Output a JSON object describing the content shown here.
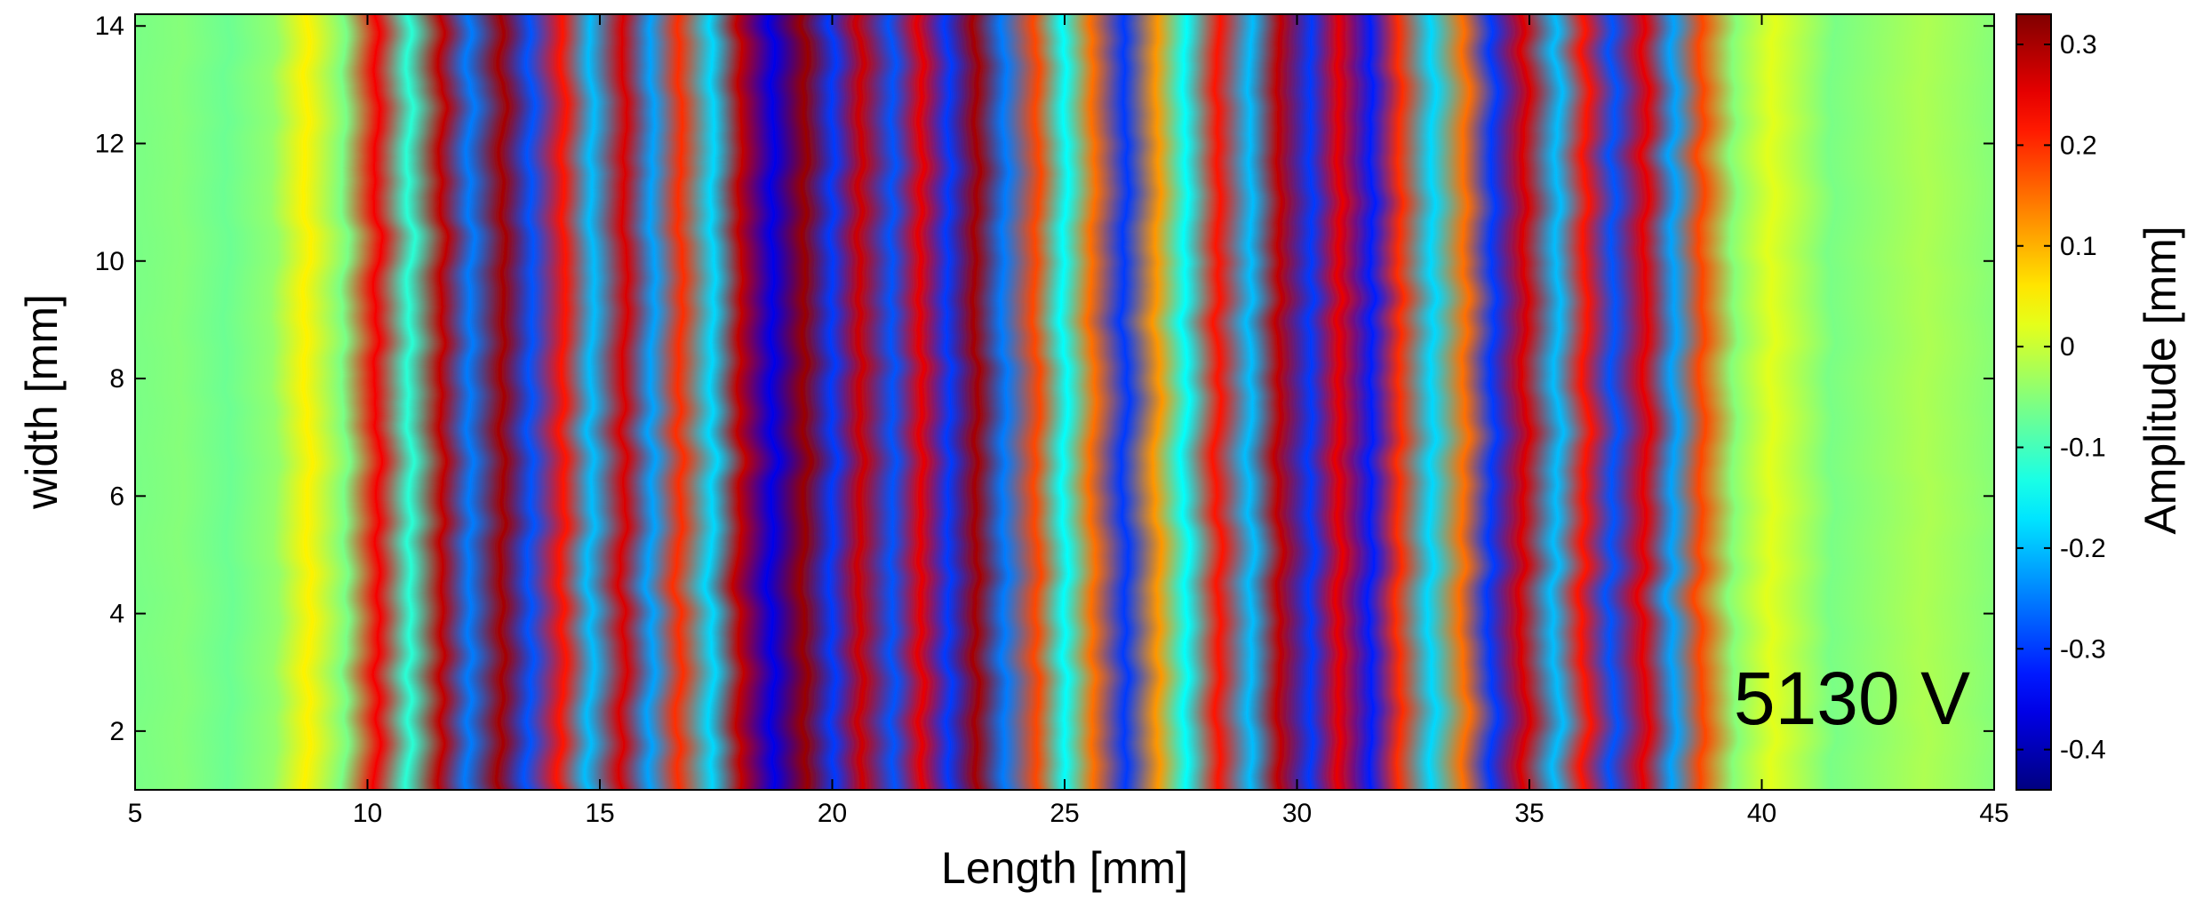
{
  "chart_data": {
    "type": "heatmap",
    "xlabel": "Length [mm]",
    "ylabel": "width [mm]",
    "colorbar_label": "Amplitude [mm]",
    "annotation": "5130 V",
    "xlim": [
      5,
      45
    ],
    "ylim": [
      1,
      14.2
    ],
    "clim": [
      -0.44,
      0.33
    ],
    "x_ticks": [
      5,
      10,
      15,
      20,
      25,
      30,
      35,
      40,
      45
    ],
    "x_tick_labels": [
      "5",
      "10",
      "15",
      "20",
      "25",
      "30",
      "35",
      "40",
      "45"
    ],
    "y_ticks": [
      2,
      4,
      6,
      8,
      10,
      12,
      14
    ],
    "y_tick_labels": [
      "2",
      "4",
      "6",
      "8",
      "10",
      "12",
      "14"
    ],
    "colorbar_ticks": [
      0.3,
      0.2,
      0.1,
      0,
      -0.1,
      -0.2,
      -0.3,
      -0.4
    ],
    "colorbar_tick_labels": [
      "0.3",
      "0.2",
      "0.1",
      "0",
      "-0.1",
      "-0.2",
      "-0.3",
      "-0.4"
    ],
    "colormap": "jet",
    "grid": false,
    "stripes_description_values": {
      "x": [
        5,
        6,
        7,
        8,
        8.7,
        9.5,
        10.2,
        10.9,
        11.6,
        12.2,
        12.9,
        13.5,
        14.2,
        14.8,
        15.5,
        16.1,
        16.7,
        17.4,
        18.0,
        18.7,
        19.4,
        20.0,
        20.6,
        21.3,
        21.9,
        22.5,
        23.1,
        23.7,
        24.4,
        25.0,
        25.6,
        26.3,
        27.0,
        27.6,
        28.3,
        29.0,
        29.6,
        30.3,
        30.9,
        31.6,
        32.2,
        32.9,
        33.6,
        34.2,
        34.9,
        35.6,
        36.2,
        36.8,
        37.5,
        38.1,
        38.7,
        39.4,
        40.2,
        41.5,
        42.5,
        43.5,
        45
      ],
      "amplitude": [
        -0.06,
        -0.05,
        -0.07,
        -0.04,
        0.05,
        -0.06,
        0.24,
        -0.12,
        0.28,
        -0.25,
        0.3,
        -0.28,
        0.22,
        -0.2,
        0.26,
        -0.22,
        0.2,
        -0.18,
        0.28,
        -0.36,
        0.31,
        -0.3,
        0.27,
        -0.28,
        0.25,
        -0.3,
        0.3,
        -0.25,
        0.18,
        -0.15,
        0.15,
        -0.3,
        0.12,
        -0.15,
        0.22,
        -0.2,
        0.28,
        -0.3,
        0.25,
        -0.32,
        0.2,
        -0.18,
        0.15,
        -0.3,
        0.26,
        -0.2,
        0.22,
        -0.28,
        0.25,
        -0.22,
        0.18,
        -0.05,
        0.02,
        -0.06,
        -0.04,
        -0.02,
        -0.05
      ]
    }
  }
}
